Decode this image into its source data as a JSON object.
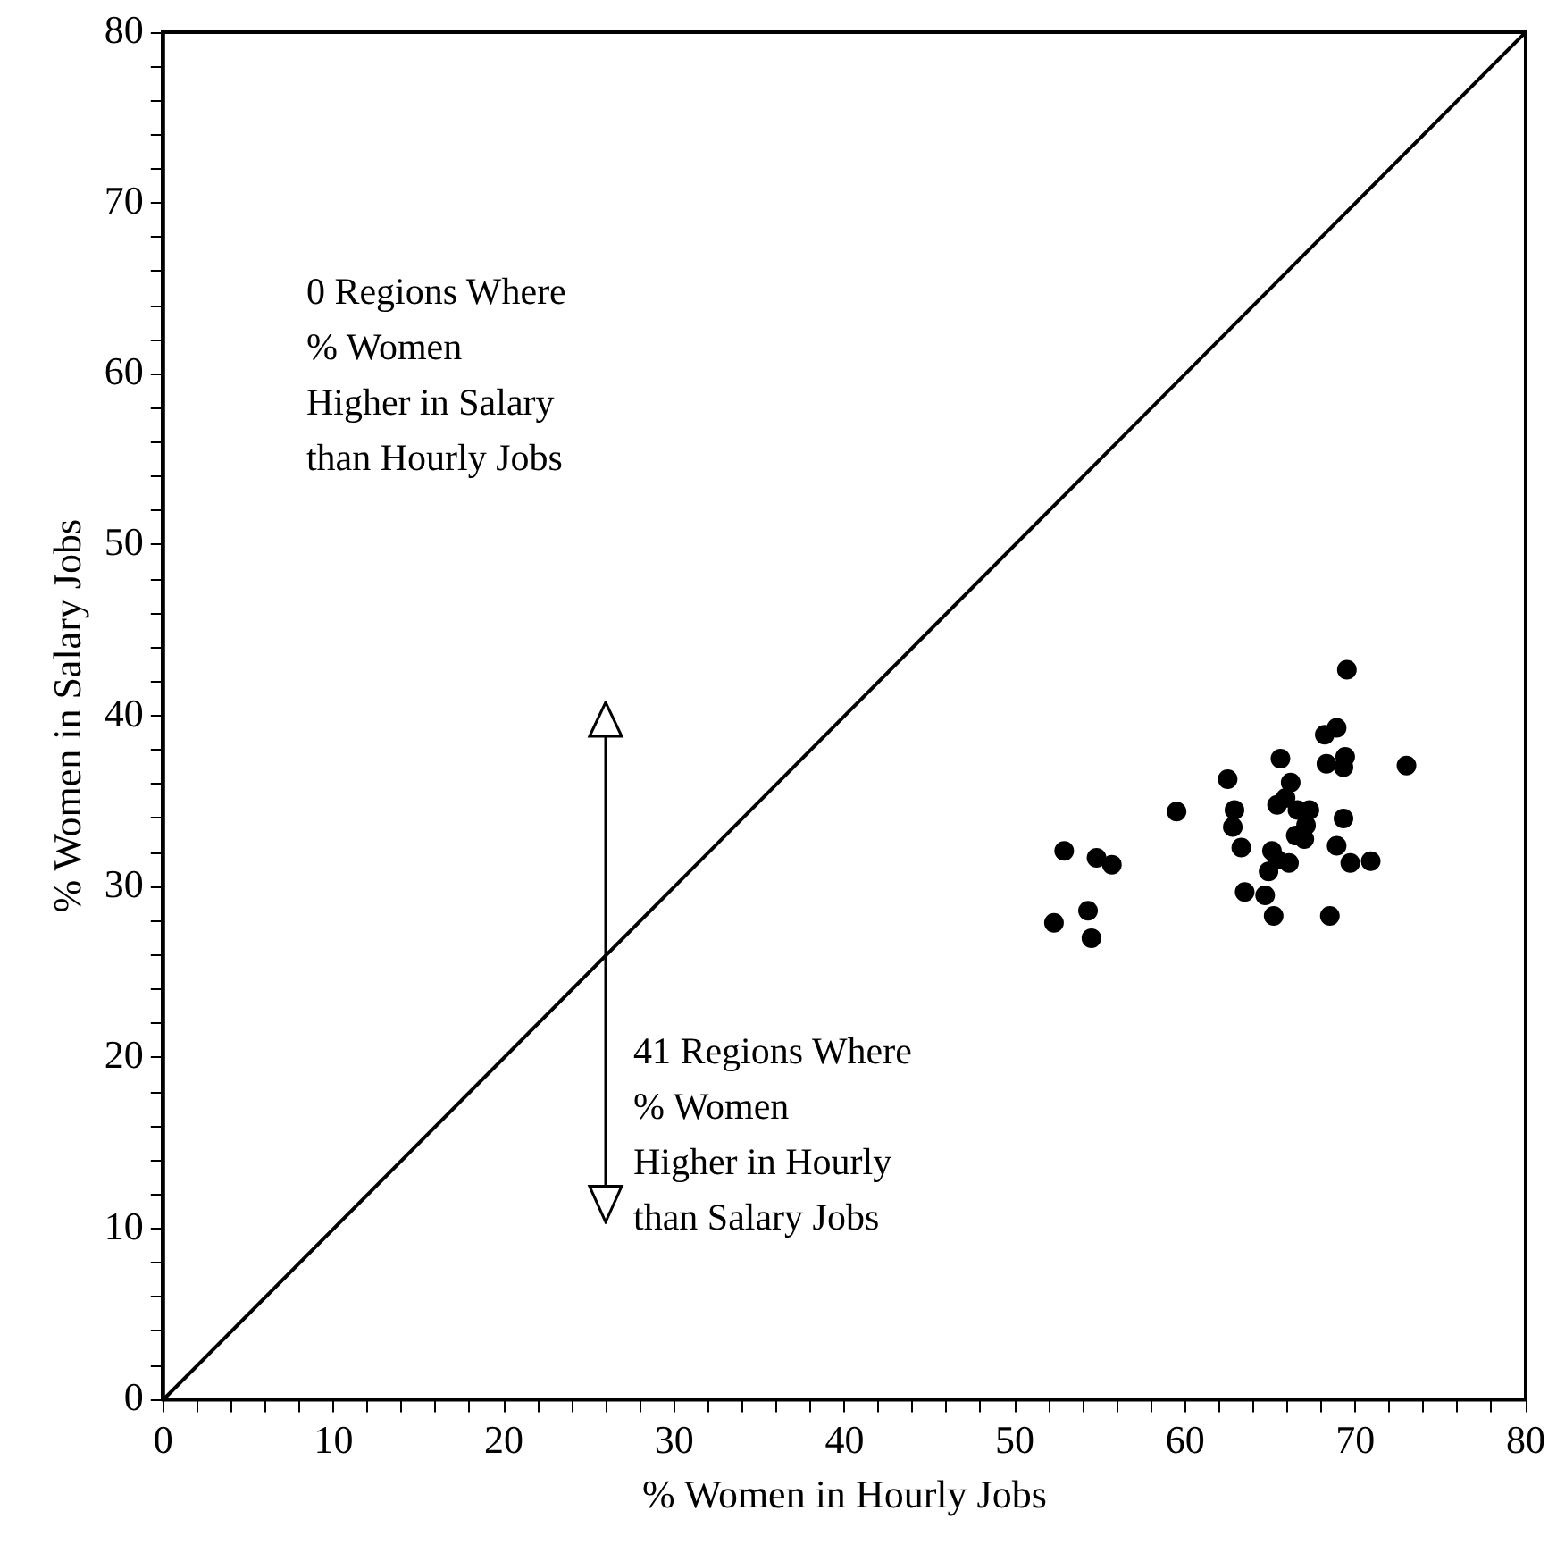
{
  "chart_data": {
    "type": "scatter",
    "xlabel": "% Women in Hourly Jobs",
    "ylabel": "% Women in Salary Jobs",
    "xlim": [
      0,
      80
    ],
    "ylim": [
      0,
      80
    ],
    "xticks": [
      0,
      {
        "value": 2,
        "label": null
      },
      {
        "value": 4,
        "label": null
      },
      {
        "value": 6,
        "label": null
      },
      {
        "value": 8,
        "label": null
      },
      10,
      {
        "value": 12,
        "label": null
      },
      {
        "value": 14,
        "label": null
      },
      {
        "value": 16,
        "label": null
      },
      {
        "value": 18,
        "label": null
      },
      20,
      {
        "value": 22,
        "label": null
      },
      {
        "value": 24,
        "label": null
      },
      {
        "value": 26,
        "label": null
      },
      {
        "value": 28,
        "label": null
      },
      30,
      {
        "value": 32,
        "label": null
      },
      {
        "value": 34,
        "label": null
      },
      {
        "value": 36,
        "label": null
      },
      {
        "value": 38,
        "label": null
      },
      40,
      {
        "value": 42,
        "label": null
      },
      {
        "value": 44,
        "label": null
      },
      {
        "value": 46,
        "label": null
      },
      {
        "value": 48,
        "label": null
      },
      50,
      {
        "value": 52,
        "label": null
      },
      {
        "value": 54,
        "label": null
      },
      {
        "value": 56,
        "label": null
      },
      {
        "value": 58,
        "label": null
      },
      60,
      {
        "value": 62,
        "label": null
      },
      {
        "value": 64,
        "label": null
      },
      {
        "value": 66,
        "label": null
      },
      {
        "value": 68,
        "label": null
      },
      70,
      {
        "value": 72,
        "label": null
      },
      {
        "value": 74,
        "label": null
      },
      {
        "value": 76,
        "label": null
      },
      {
        "value": 78,
        "label": null
      },
      80
    ],
    "yticks": [
      0,
      {
        "value": 2,
        "label": null
      },
      {
        "value": 4,
        "label": null
      },
      {
        "value": 6,
        "label": null
      },
      {
        "value": 8,
        "label": null
      },
      10,
      {
        "value": 12,
        "label": null
      },
      {
        "value": 14,
        "label": null
      },
      {
        "value": 16,
        "label": null
      },
      {
        "value": 18,
        "label": null
      },
      20,
      {
        "value": 22,
        "label": null
      },
      {
        "value": 24,
        "label": null
      },
      {
        "value": 26,
        "label": null
      },
      {
        "value": 28,
        "label": null
      },
      30,
      {
        "value": 32,
        "label": null
      },
      {
        "value": 34,
        "label": null
      },
      {
        "value": 36,
        "label": null
      },
      {
        "value": 38,
        "label": null
      },
      40,
      {
        "value": 42,
        "label": null
      },
      {
        "value": 44,
        "label": null
      },
      {
        "value": 46,
        "label": null
      },
      {
        "value": 48,
        "label": null
      },
      50,
      {
        "value": 52,
        "label": null
      },
      {
        "value": 54,
        "label": null
      },
      {
        "value": 56,
        "label": null
      },
      {
        "value": 58,
        "label": null
      },
      60,
      {
        "value": 62,
        "label": null
      },
      {
        "value": 64,
        "label": null
      },
      {
        "value": 66,
        "label": null
      },
      {
        "value": 68,
        "label": null
      },
      70,
      {
        "value": 72,
        "label": null
      },
      {
        "value": 74,
        "label": null
      },
      {
        "value": 76,
        "label": null
      },
      {
        "value": 78,
        "label": null
      },
      80
    ],
    "grid": false,
    "legend": false,
    "marker": "circle",
    "series": [
      {
        "color": "#000000",
        "x": [
          69.5,
          68.9,
          68.2,
          65.6,
          68.3,
          69.4,
          69.3,
          73.0,
          62.5,
          66.2,
          59.5,
          62.9,
          62.8,
          65.4,
          65.9,
          66.6,
          67.3,
          67.1,
          67.0,
          69.3,
          63.3,
          65.1,
          66.1,
          64.9,
          65.4,
          68.9,
          69.7,
          70.9,
          63.5,
          64.7,
          65.2,
          68.5,
          52.9,
          54.8,
          55.7,
          54.3,
          52.3,
          54.5,
          66.5
        ],
        "values": [
          42.7,
          39.3,
          38.9,
          37.5,
          37.2,
          37.6,
          37.0,
          37.1,
          36.3,
          36.1,
          34.4,
          34.5,
          33.5,
          34.8,
          35.2,
          34.5,
          34.5,
          33.6,
          32.8,
          34.0,
          32.3,
          32.1,
          31.4,
          30.9,
          31.6,
          32.4,
          31.4,
          31.5,
          29.7,
          29.5,
          28.3,
          28.3,
          32.1,
          31.7,
          31.3,
          28.6,
          27.9,
          27.0,
          33.0
        ]
      },
      {
        "type": "line",
        "color": "#000000",
        "x": [
          0,
          80
        ],
        "values": [
          0,
          80
        ],
        "marker": "none",
        "line_style": "solid"
      }
    ],
    "annotations": [
      "0 Regions Where\n% Women\nHigher in Salary\nthan Hourly Jobs",
      "41 Regions Where\n% Women\nHigher in Hourly\nthan Salary Jobs"
    ]
  }
}
